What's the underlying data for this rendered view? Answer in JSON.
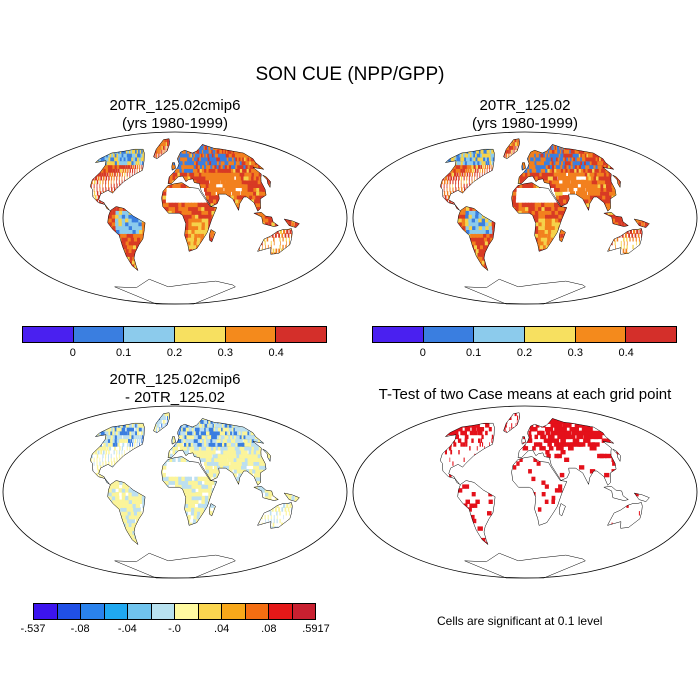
{
  "title": "SON CUE (NPP/GPP)",
  "panels": [
    {
      "title_line1": "20TR_125.02cmip6",
      "title_line2": "(yrs 1980-1999)"
    },
    {
      "title_line1": "20TR_125.02",
      "title_line2": "(yrs 1980-1999)"
    },
    {
      "title_line1": "20TR_125.02cmip6",
      "title_line2": "- 20TR_125.02"
    },
    {
      "title_line1": "T-Test of two Case means at each grid point"
    }
  ],
  "colorbar_top": {
    "colors": [
      "#4a20f0",
      "#3a7ee0",
      "#8ccbec",
      "#f7e060",
      "#f48a1c",
      "#d42f2a"
    ],
    "tick_labels": [
      "0",
      "0.1",
      "0.2",
      "0.3",
      "0.4"
    ]
  },
  "colorbar_diff": {
    "colors": [
      "#3c14ee",
      "#2050e6",
      "#2a82ec",
      "#20a8f0",
      "#70c4ee",
      "#b8e2f0",
      "#fffaa0",
      "#fbd650",
      "#f8a81a",
      "#f46e12",
      "#e41818",
      "#c82030"
    ],
    "tick_labels": [
      "-.537",
      "-.08",
      "-.04",
      "-.0",
      ".04",
      ".08",
      ".5917"
    ]
  },
  "significance_note": "Cells are significant at 0.1 level",
  "colors": {
    "land_red": "#d83a24",
    "land_orange": "#f2801e",
    "land_yellow": "#f5d24a",
    "land_blue": "#3a7ee0",
    "land_light_blue": "#8ccbec",
    "diff_yellow": "#fbf49a",
    "diff_blue": "#bcdff0",
    "sig_red": "#e4101a"
  }
}
